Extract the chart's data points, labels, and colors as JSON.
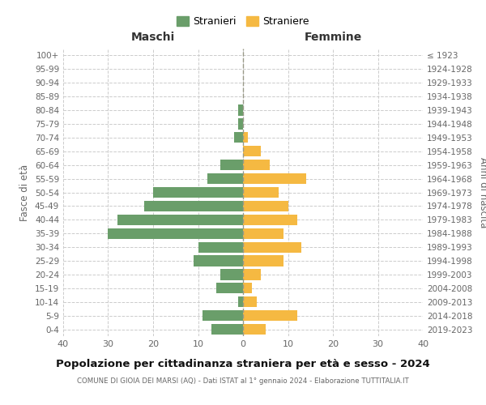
{
  "age_groups": [
    "0-4",
    "5-9",
    "10-14",
    "15-19",
    "20-24",
    "25-29",
    "30-34",
    "35-39",
    "40-44",
    "45-49",
    "50-54",
    "55-59",
    "60-64",
    "65-69",
    "70-74",
    "75-79",
    "80-84",
    "85-89",
    "90-94",
    "95-99",
    "100+"
  ],
  "birth_years": [
    "2019-2023",
    "2014-2018",
    "2009-2013",
    "2004-2008",
    "1999-2003",
    "1994-1998",
    "1989-1993",
    "1984-1988",
    "1979-1983",
    "1974-1978",
    "1969-1973",
    "1964-1968",
    "1959-1963",
    "1954-1958",
    "1949-1953",
    "1944-1948",
    "1939-1943",
    "1934-1938",
    "1929-1933",
    "1924-1928",
    "≤ 1923"
  ],
  "maschi": [
    7,
    9,
    1,
    6,
    5,
    11,
    10,
    30,
    28,
    22,
    20,
    8,
    5,
    0,
    2,
    1,
    1,
    0,
    0,
    0,
    0
  ],
  "femmine": [
    5,
    12,
    3,
    2,
    4,
    9,
    13,
    9,
    12,
    10,
    8,
    14,
    6,
    4,
    1,
    0,
    0,
    0,
    0,
    0,
    0
  ],
  "male_color": "#6a9e6a",
  "female_color": "#f5b942",
  "title": "Popolazione per cittadinanza straniera per età e sesso - 2024",
  "subtitle": "COMUNE DI GIOIA DEI MARSI (AQ) - Dati ISTAT al 1° gennaio 2024 - Elaborazione TUTTITALIA.IT",
  "xlabel_left": "Maschi",
  "xlabel_right": "Femmine",
  "ylabel_left": "Fasce di età",
  "ylabel_right": "Anni di nascita",
  "legend_male": "Stranieri",
  "legend_female": "Straniere",
  "xlim": 40,
  "background_color": "#ffffff",
  "grid_color": "#cccccc"
}
